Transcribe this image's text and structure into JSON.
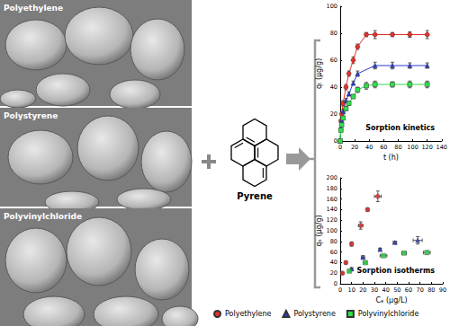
{
  "figure": {
    "image_labels": [
      "Polyethylene",
      "Polystyrene",
      "Polyvinylchloride"
    ],
    "molecule_label": "Pyrene"
  },
  "chart_data": [
    {
      "type": "line",
      "title": "Sorption kinetics",
      "x_label": "t (h)",
      "y_label": "qₜ (μg/g)",
      "xlim": [
        0,
        140
      ],
      "xticks": [
        0,
        20,
        40,
        60,
        80,
        100,
        120,
        140
      ],
      "ylim": [
        0,
        100
      ],
      "yticks": [
        0,
        20,
        40,
        60,
        80,
        100
      ],
      "grid": false,
      "series": [
        {
          "name": "Polyethylene",
          "color": "#e8302a",
          "marker": "circle",
          "x": [
            0,
            1,
            2,
            4,
            8,
            12,
            18,
            24,
            36,
            48,
            72,
            96,
            120
          ],
          "values": [
            0,
            15,
            20,
            28,
            40,
            50,
            60,
            70,
            79,
            79,
            79,
            79,
            79
          ],
          "errors": [
            0,
            1,
            1.5,
            2,
            2,
            2,
            2.5,
            2,
            1.5,
            3,
            1.5,
            2,
            3
          ]
        },
        {
          "name": "Polystyrene",
          "color": "#2b3bd6",
          "marker": "triangle",
          "x": [
            0,
            1,
            2,
            4,
            8,
            12,
            18,
            24,
            48,
            72,
            96,
            120
          ],
          "values": [
            0,
            10,
            15,
            22,
            30,
            35,
            43,
            50,
            56,
            56,
            56,
            56
          ],
          "errors": [
            0,
            1,
            1,
            1.5,
            1.5,
            1.5,
            1.5,
            2,
            2.5,
            2.5,
            2,
            2
          ]
        },
        {
          "name": "Polyvinylchloride",
          "color": "#2ee04a",
          "marker": "square",
          "x": [
            0,
            1,
            2,
            4,
            8,
            12,
            18,
            24,
            36,
            48,
            72,
            96,
            120
          ],
          "values": [
            0,
            8,
            12,
            17,
            24,
            28,
            33,
            38,
            41,
            42,
            42,
            42,
            42
          ],
          "errors": [
            0,
            1,
            1,
            1,
            1.5,
            1.5,
            1.5,
            2,
            2.5,
            2.5,
            2,
            2.5,
            2.5
          ]
        }
      ]
    },
    {
      "type": "scatter",
      "title": "Sorption isotherms",
      "x_label": "Cₑ (μg/L)",
      "y_label": "qₑ (μg/g)",
      "xlim": [
        0,
        90
      ],
      "xticks": [
        0,
        10,
        20,
        30,
        40,
        50,
        60,
        70,
        80,
        90
      ],
      "ylim": [
        0,
        200
      ],
      "yticks": [
        0,
        20,
        40,
        60,
        80,
        100,
        120,
        140,
        160,
        180,
        200
      ],
      "grid": false,
      "legend": "bottom",
      "series": [
        {
          "name": "Polyethylene",
          "color": "#e8302a",
          "marker": "circle",
          "x": [
            2,
            5,
            10,
            18,
            24,
            33
          ],
          "values": [
            20,
            40,
            75,
            110,
            140,
            165
          ],
          "x_errors": [
            0.5,
            0.8,
            1,
            2,
            1,
            3
          ],
          "errors": [
            2,
            3,
            4,
            7,
            3,
            10
          ]
        },
        {
          "name": "Polystyrene",
          "color": "#2b3bd6",
          "marker": "triangle",
          "x": [
            10,
            20,
            35,
            48,
            68
          ],
          "values": [
            28,
            50,
            65,
            78,
            82
          ],
          "x_errors": [
            1,
            1.5,
            1,
            1.5,
            4
          ],
          "errors": [
            2,
            3,
            2,
            2,
            7
          ]
        },
        {
          "name": "Polyvinylchloride",
          "color": "#2ee04a",
          "marker": "square",
          "x": [
            8,
            22,
            38,
            56,
            76
          ],
          "values": [
            24,
            40,
            53,
            58,
            59
          ],
          "x_errors": [
            1,
            1.5,
            3,
            2,
            3
          ],
          "errors": [
            2,
            2,
            2,
            2,
            3
          ]
        }
      ]
    }
  ]
}
